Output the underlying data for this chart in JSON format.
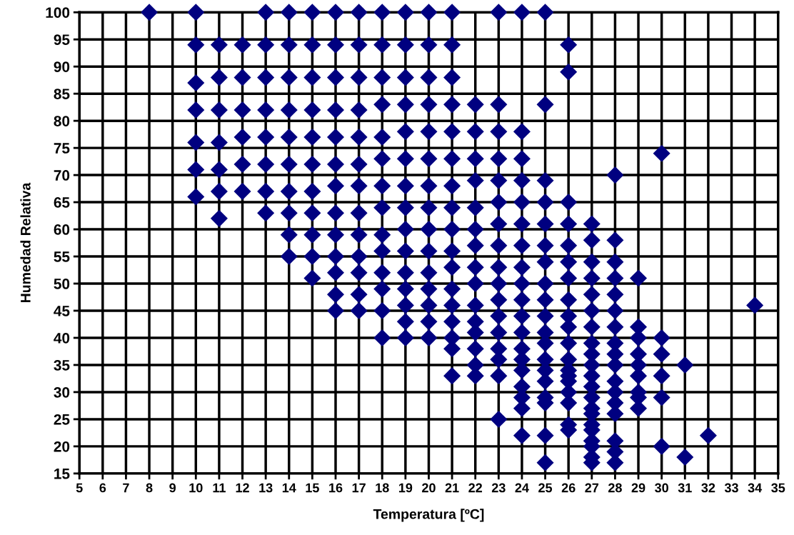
{
  "chart_data": {
    "type": "scatter",
    "xlabel": "Temperatura [ºC]",
    "ylabel": "Humedad Relativa",
    "xlim": [
      5,
      35
    ],
    "xticks": [
      5,
      6,
      7,
      8,
      9,
      10,
      11,
      12,
      13,
      14,
      15,
      16,
      17,
      18,
      19,
      20,
      21,
      22,
      23,
      24,
      25,
      26,
      27,
      28,
      29,
      30,
      31,
      32,
      33,
      34,
      35
    ],
    "ylim": [
      15,
      100
    ],
    "yticks": [
      15,
      20,
      25,
      30,
      35,
      40,
      45,
      50,
      55,
      60,
      65,
      70,
      75,
      80,
      85,
      90,
      95,
      100
    ],
    "grid": true,
    "marker": "diamond",
    "legend": false,
    "series": [
      {
        "color": "#000080",
        "x": [
          8,
          10,
          10,
          10,
          10,
          10,
          10,
          10,
          11,
          11,
          11,
          11,
          11,
          11,
          11,
          12,
          12,
          12,
          12,
          12,
          12,
          13,
          13,
          13,
          13,
          13,
          13,
          13,
          13,
          14,
          14,
          14,
          14,
          14,
          14,
          14,
          14,
          14,
          14,
          15,
          15,
          15,
          15,
          15,
          15,
          15,
          15,
          15,
          15,
          15,
          16,
          16,
          16,
          16,
          16,
          16,
          16,
          16,
          16,
          16,
          16,
          16,
          16,
          17,
          17,
          17,
          17,
          17,
          17,
          17,
          17,
          17,
          17,
          17,
          17,
          17,
          18,
          18,
          18,
          18,
          18,
          18,
          18,
          18,
          18,
          18,
          18,
          18,
          18,
          18,
          19,
          19,
          19,
          19,
          19,
          19,
          19,
          19,
          19,
          19,
          19,
          19,
          19,
          19,
          19,
          20,
          20,
          20,
          20,
          20,
          20,
          20,
          20,
          20,
          20,
          20,
          20,
          20,
          20,
          20,
          21,
          21,
          21,
          21,
          21,
          21,
          21,
          21,
          21,
          21,
          21,
          21,
          21,
          21,
          21,
          21,
          21,
          22,
          22,
          22,
          22,
          22,
          22,
          22,
          22,
          22,
          22,
          22,
          22,
          22,
          22,
          22,
          23,
          23,
          23,
          23,
          23,
          23,
          23,
          23,
          23,
          23,
          23,
          23,
          23,
          23,
          23,
          23,
          23,
          24,
          24,
          24,
          24,
          24,
          24,
          24,
          24,
          24,
          24,
          24,
          24,
          24,
          24,
          24,
          24,
          24,
          24,
          24,
          25,
          25,
          25,
          25,
          25,
          25,
          25,
          25,
          25,
          25,
          25,
          25,
          25,
          25,
          25,
          25,
          25,
          25,
          25,
          26,
          26,
          26,
          26,
          26,
          26,
          26,
          26,
          26,
          26,
          26,
          26,
          26,
          26,
          26,
          26,
          26,
          26,
          26,
          27,
          27,
          27,
          27,
          27,
          27,
          27,
          27,
          27,
          27,
          27,
          27,
          27,
          27,
          27,
          27,
          27,
          27,
          27,
          27,
          27,
          28,
          28,
          28,
          28,
          28,
          28,
          28,
          28,
          28,
          28,
          28,
          28,
          28,
          28,
          28,
          28,
          28,
          29,
          29,
          29,
          29,
          29,
          29,
          29,
          29,
          29,
          30,
          30,
          30,
          30,
          30,
          30,
          31,
          31,
          32,
          34
        ],
        "values": [
          100,
          100,
          94,
          87,
          82,
          76,
          71,
          66,
          94,
          88,
          82,
          76,
          71,
          67,
          62,
          94,
          88,
          82,
          77,
          72,
          67,
          100,
          94,
          88,
          82,
          77,
          72,
          67,
          63,
          100,
          94,
          88,
          82,
          77,
          72,
          67,
          63,
          59,
          55,
          100,
          94,
          88,
          82,
          77,
          72,
          67,
          63,
          59,
          55,
          51,
          100,
          94,
          88,
          82,
          77,
          72,
          68,
          63,
          59,
          55,
          52,
          48,
          45,
          100,
          94,
          88,
          82,
          77,
          72,
          68,
          63,
          59,
          55,
          52,
          48,
          45,
          100,
          94,
          88,
          83,
          77,
          73,
          68,
          64,
          59,
          56,
          52,
          49,
          45,
          40,
          100,
          94,
          88,
          83,
          78,
          73,
          68,
          64,
          60,
          56,
          52,
          49,
          46,
          43,
          40,
          100,
          94,
          88,
          83,
          78,
          73,
          68,
          64,
          60,
          56,
          52,
          49,
          46,
          43,
          40,
          100,
          94,
          88,
          83,
          78,
          73,
          68,
          64,
          60,
          56,
          53,
          49,
          46,
          43,
          40,
          38,
          33,
          83,
          78,
          73,
          69,
          64,
          60,
          57,
          53,
          50,
          46,
          43,
          41,
          38,
          35,
          33,
          100,
          83,
          78,
          73,
          69,
          65,
          61,
          57,
          53,
          50,
          47,
          44,
          41,
          38,
          36,
          33,
          25,
          100,
          78,
          73,
          69,
          65,
          61,
          57,
          53,
          50,
          47,
          44,
          41,
          38,
          36,
          34,
          31,
          29,
          27,
          22,
          100,
          83,
          69,
          65,
          61,
          57,
          54,
          50,
          47,
          44,
          41,
          39,
          36,
          34,
          32,
          29,
          28,
          22,
          17,
          94,
          89,
          65,
          61,
          57,
          54,
          51,
          47,
          44,
          42,
          39,
          36,
          34,
          33,
          32,
          30,
          28,
          24,
          23,
          61,
          58,
          54,
          51,
          48,
          45,
          42,
          39,
          37,
          35,
          33,
          31,
          29,
          27,
          26,
          24,
          23,
          21,
          20,
          18,
          17,
          70,
          58,
          54,
          51,
          48,
          45,
          42,
          39,
          37,
          35,
          32,
          30,
          28,
          26,
          21,
          19,
          17,
          51,
          42,
          40,
          37,
          35,
          33,
          30,
          29,
          27,
          74,
          40,
          37,
          33,
          29,
          20,
          35,
          18,
          22,
          46
        ]
      }
    ]
  }
}
